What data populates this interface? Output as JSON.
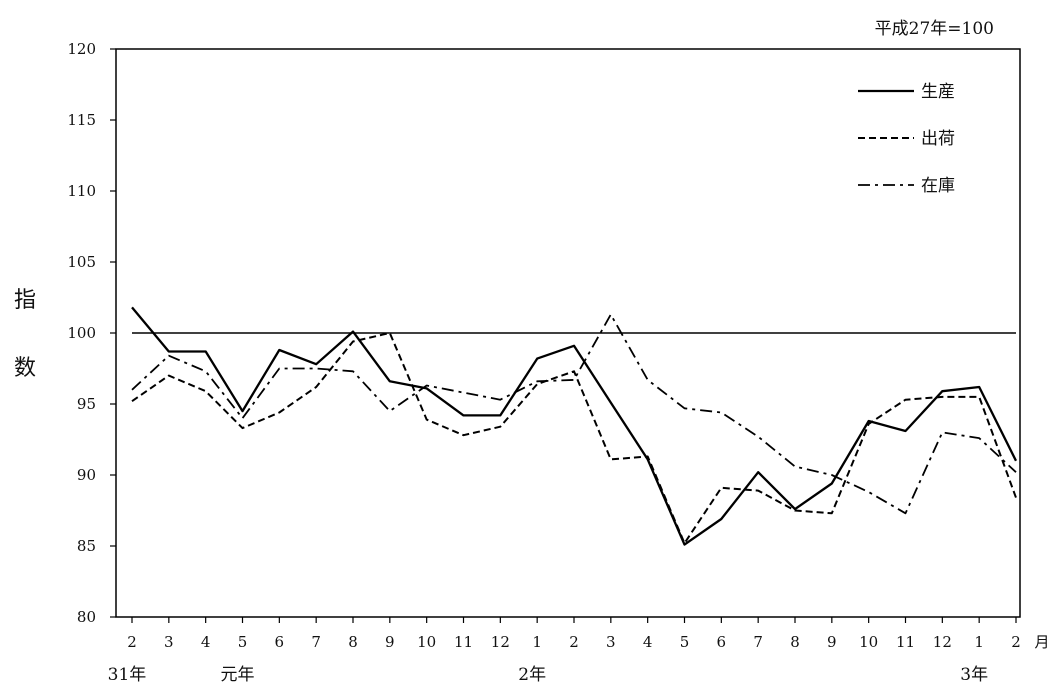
{
  "chart_data": {
    "type": "line",
    "base_note": "平成27年=100",
    "ylabel": "指数",
    "x_unit": "月",
    "ylim": [
      80,
      120
    ],
    "yticks": [
      80,
      85,
      90,
      95,
      100,
      105,
      110,
      115,
      120
    ],
    "reference_line": 100,
    "categories": [
      "2",
      "3",
      "4",
      "5",
      "6",
      "7",
      "8",
      "9",
      "10",
      "11",
      "12",
      "1",
      "2",
      "3",
      "4",
      "5",
      "6",
      "7",
      "8",
      "9",
      "10",
      "11",
      "12",
      "1",
      "2"
    ],
    "year_labels": [
      {
        "at_index": 0,
        "label": "31年"
      },
      {
        "at_index": 3,
        "label": "元年"
      },
      {
        "at_index": 11,
        "label": "2年"
      },
      {
        "at_index": 23,
        "label": "3年"
      }
    ],
    "legend_position": "top-right",
    "series": [
      {
        "name": "生産",
        "style": "solid",
        "values": [
          101.8,
          98.7,
          98.7,
          94.5,
          98.8,
          97.8,
          100.1,
          96.6,
          96.1,
          94.2,
          94.2,
          98.2,
          99.1,
          95.1,
          91.1,
          85.1,
          86.9,
          90.2,
          87.6,
          89.4,
          93.8,
          93.1,
          95.9,
          96.2,
          91.0
        ]
      },
      {
        "name": "出荷",
        "style": "dashed",
        "values": [
          95.2,
          97.0,
          95.9,
          93.3,
          94.4,
          96.2,
          99.4,
          100.0,
          93.9,
          92.8,
          93.4,
          96.4,
          97.3,
          91.1,
          91.3,
          85.2,
          89.1,
          88.9,
          87.5,
          87.3,
          93.6,
          95.3,
          95.5,
          95.5,
          88.4
        ]
      },
      {
        "name": "在庫",
        "style": "dashdot",
        "values": [
          96.0,
          98.4,
          97.3,
          94.0,
          97.5,
          97.5,
          97.3,
          94.5,
          96.3,
          95.8,
          95.3,
          96.6,
          96.7,
          101.3,
          96.7,
          94.7,
          94.4,
          92.7,
          90.6,
          90.0,
          88.8,
          87.3,
          93.0,
          92.6,
          90.2
        ]
      }
    ]
  }
}
